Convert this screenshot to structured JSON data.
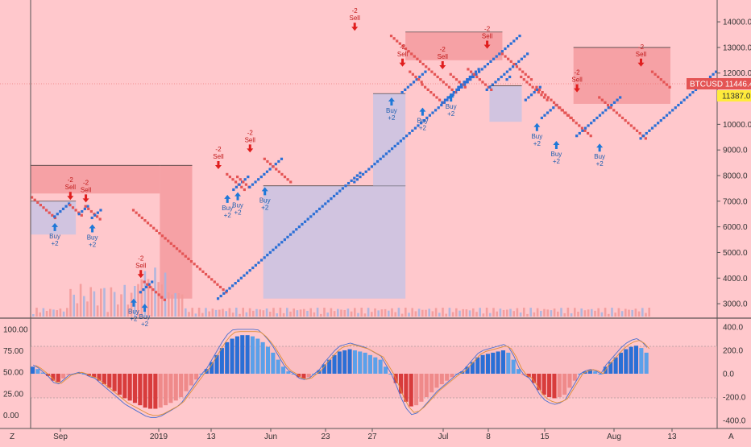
{
  "symbol": "BTCUSD",
  "last_price": "11446.4",
  "marker_price": "11387.0",
  "colors": {
    "background": "#ffc8cc",
    "up_brick": "#2a6fd6",
    "down_brick": "#e45454",
    "buy": "#1e78d8",
    "sell": "#e01e1e",
    "zone_red": "#f49a9e",
    "zone_blue": "#c9c3e3",
    "price_tag": "#e45454",
    "marker_tag": "#ffeb3b"
  },
  "signal_labels": {
    "buy": "Buy",
    "buy_size": "+2",
    "sell": "Sell",
    "sell_size": "-2"
  },
  "corner": {
    "left": "Z",
    "right": "A"
  },
  "chart_data": [
    {
      "type": "line",
      "subtype": "renko",
      "symbol": "BTCUSD",
      "price_axis_ticks": [
        "14000.0",
        "13000.0",
        "12000.0",
        "11000.0",
        "10000.0",
        "9000.0",
        "8000.0",
        "7000.0",
        "6000.0",
        "5000.0",
        "4000.0",
        "3000.0"
      ],
      "ylim": [
        2500,
        14600
      ],
      "x_axis_ticks": [
        "Sep",
        "2019",
        "13",
        "Jun",
        "23",
        "27",
        "Jul",
        "8",
        "15",
        "Aug",
        "13"
      ],
      "renko_path": [
        [
          7200,
          6350,
          0.0
        ],
        [
          6350,
          6900,
          0.035
        ],
        [
          6900,
          6450,
          0.059
        ],
        [
          6450,
          6850,
          0.073
        ],
        [
          6850,
          6300,
          0.083
        ],
        [
          6300,
          6700,
          0.093
        ],
        [
          6700,
          3400,
          0.157
        ],
        [
          3400,
          3900,
          0.168
        ],
        [
          3900,
          3150,
          0.174
        ],
        [
          3150,
          8100,
          0.288
        ],
        [
          8100,
          7400,
          0.302
        ],
        [
          7400,
          8000,
          0.312
        ],
        [
          8000,
          7500,
          0.318
        ],
        [
          7500,
          8700,
          0.337
        ],
        [
          8700,
          7700,
          0.36
        ],
        [
          7700,
          13500,
          0.499
        ],
        [
          13500,
          11200,
          0.556
        ],
        [
          11200,
          12100,
          0.573
        ],
        [
          12100,
          11600,
          0.585
        ],
        [
          11600,
          10800,
          0.604
        ],
        [
          10800,
          12000,
          0.635
        ],
        [
          12000,
          11400,
          0.648
        ],
        [
          11400,
          12200,
          0.66
        ],
        [
          12200,
          11300,
          0.675
        ],
        [
          11300,
          12800,
          0.704
        ],
        [
          12800,
          11700,
          0.728
        ],
        [
          11700,
          11900,
          0.735
        ],
        [
          11900,
          10900,
          0.757
        ],
        [
          10900,
          11500,
          0.764
        ],
        [
          11500,
          10200,
          0.781
        ],
        [
          10200,
          10800,
          0.789
        ],
        [
          10800,
          9500,
          0.811
        ],
        [
          9500,
          11100,
          0.843
        ],
        [
          11100,
          9400,
          0.878
        ],
        [
          9400,
          12100,
          0.942
        ],
        [
          12100,
          11400,
          0.96
        ]
      ],
      "signals": [
        {
          "type": "buy",
          "price": 6150,
          "t": 0.035
        },
        {
          "type": "sell",
          "price": 7050,
          "t": 0.059
        },
        {
          "type": "sell",
          "price": 6950,
          "t": 0.083
        },
        {
          "type": "buy",
          "price": 6100,
          "t": 0.093
        },
        {
          "type": "sell",
          "price": 4000,
          "t": 0.168
        },
        {
          "type": "buy",
          "price": 3200,
          "t": 0.157
        },
        {
          "type": "buy",
          "price": 3000,
          "t": 0.174
        },
        {
          "type": "sell",
          "price": 8250,
          "t": 0.288
        },
        {
          "type": "buy",
          "price": 7250,
          "t": 0.302
        },
        {
          "type": "buy",
          "price": 7350,
          "t": 0.318
        },
        {
          "type": "sell",
          "price": 8900,
          "t": 0.337
        },
        {
          "type": "buy",
          "price": 7550,
          "t": 0.36
        },
        {
          "type": "sell",
          "price": 13650,
          "t": 0.499
        },
        {
          "type": "buy",
          "price": 11050,
          "t": 0.556
        },
        {
          "type": "sell",
          "price": 12250,
          "t": 0.573
        },
        {
          "type": "buy",
          "price": 10650,
          "t": 0.604
        },
        {
          "type": "sell",
          "price": 12150,
          "t": 0.635
        },
        {
          "type": "buy",
          "price": 11200,
          "t": 0.648
        },
        {
          "type": "sell",
          "price": 12950,
          "t": 0.704
        },
        {
          "type": "buy",
          "price": 10050,
          "t": 0.781
        },
        {
          "type": "buy",
          "price": 9350,
          "t": 0.811
        },
        {
          "type": "sell",
          "price": 11250,
          "t": 0.843
        },
        {
          "type": "buy",
          "price": 9250,
          "t": 0.878
        },
        {
          "type": "sell",
          "price": 12250,
          "t": 0.942
        }
      ],
      "zones": [
        {
          "color": "red",
          "y0": 8400,
          "y1": 7300,
          "t0": 0.0,
          "t1": 0.2
        },
        {
          "color": "red",
          "y0": 8400,
          "y1": 3200,
          "t0": 0.2,
          "t1": 0.25
        },
        {
          "color": "blue",
          "y0": 7000,
          "y1": 5700,
          "t0": 0.0,
          "t1": 0.07
        },
        {
          "color": "blue",
          "y0": 7600,
          "y1": 3200,
          "t0": 0.36,
          "t1": 0.58
        },
        {
          "color": "blue",
          "y0": 11200,
          "y1": 7600,
          "t0": 0.53,
          "t1": 0.58
        },
        {
          "color": "red",
          "y0": 13600,
          "y1": 12500,
          "t0": 0.58,
          "t1": 0.73
        },
        {
          "color": "red",
          "y0": 13000,
          "y1": 10800,
          "t0": 0.84,
          "t1": 0.99
        },
        {
          "color": "blue",
          "y0": 11500,
          "y1": 10100,
          "t0": 0.71,
          "t1": 0.76
        }
      ]
    },
    {
      "type": "bar",
      "series_type": "oscillator_histogram",
      "y_axis_left_ticks": [
        "100.00",
        "75.00",
        "50.00",
        "25.00",
        "0.00"
      ],
      "y_axis_right_ticks": [
        "400.0",
        "200.0",
        "0.0",
        "-200.0",
        "-400.0"
      ],
      "ylim": [
        -400,
        400
      ],
      "values": [
        60,
        40,
        10,
        -20,
        -60,
        -70,
        -40,
        -10,
        0,
        10,
        0,
        -20,
        -30,
        -60,
        -90,
        -120,
        -150,
        -180,
        -210,
        -230,
        -250,
        -270,
        -290,
        -300,
        -300,
        -290,
        -270,
        -250,
        -230,
        -200,
        -150,
        -100,
        -50,
        0,
        40,
        100,
        160,
        220,
        270,
        300,
        320,
        330,
        330,
        320,
        300,
        270,
        230,
        180,
        120,
        60,
        20,
        0,
        -30,
        -40,
        -30,
        0,
        30,
        80,
        120,
        160,
        190,
        200,
        210,
        200,
        190,
        180,
        160,
        140,
        120,
        60,
        0,
        -80,
        -170,
        -240,
        -280,
        -270,
        -240,
        -200,
        -160,
        -120,
        -90,
        -60,
        -30,
        0,
        20,
        60,
        100,
        140,
        160,
        170,
        180,
        190,
        200,
        180,
        120,
        40,
        -10,
        -30,
        -80,
        -140,
        -180,
        -200,
        -210,
        -200,
        -180,
        -120,
        -60,
        0,
        20,
        30,
        20,
        0,
        60,
        100,
        140,
        180,
        210,
        230,
        240,
        220,
        180
      ]
    }
  ]
}
